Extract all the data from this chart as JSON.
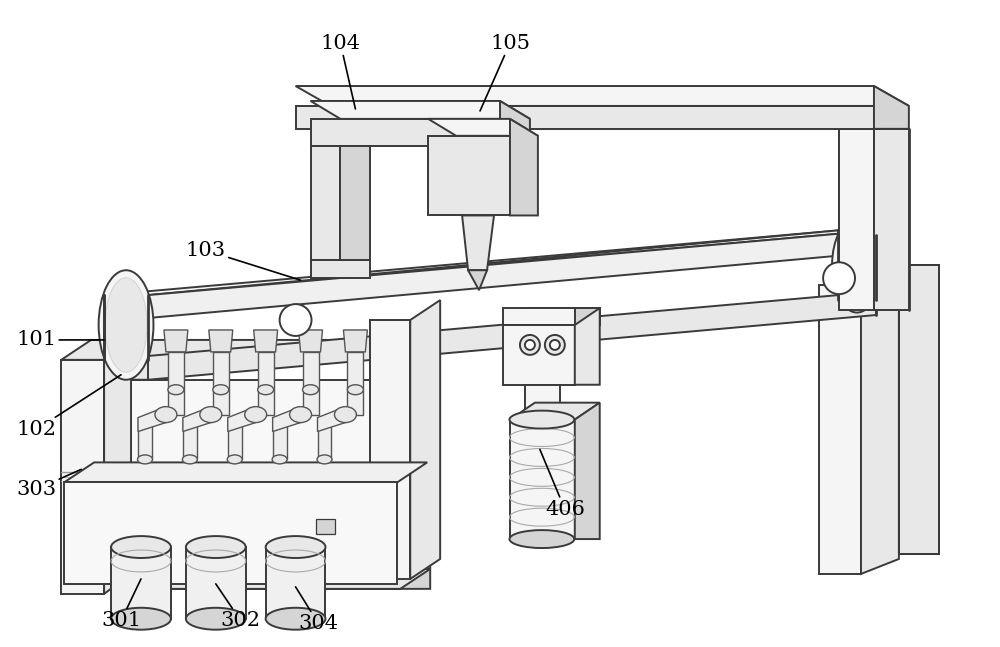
{
  "bg": "#ffffff",
  "lc": "#3a3a3a",
  "fl": "#f5f5f5",
  "fm": "#e8e8e8",
  "fd": "#d5d5d5",
  "fdd": "#c5c5c5",
  "lw": 1.4,
  "lw2": 2.0,
  "lw3": 0.8,
  "fs": 15
}
